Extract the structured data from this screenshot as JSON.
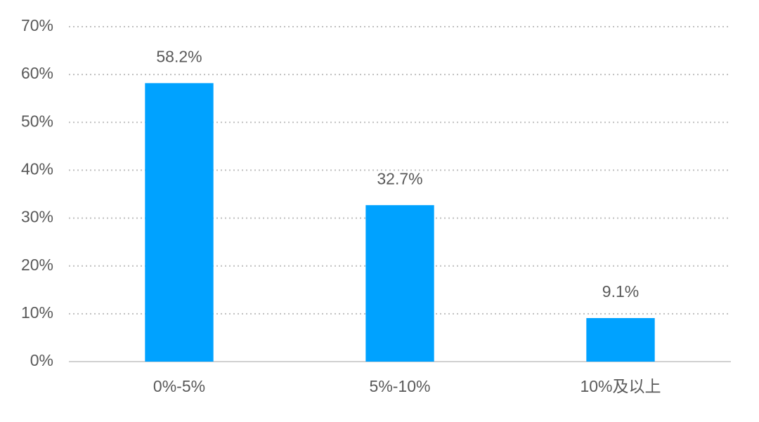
{
  "chart_data": {
    "type": "bar",
    "categories": [
      "0%-5%",
      "5%-10%",
      "10%及以上"
    ],
    "values": [
      58.2,
      32.7,
      9.1
    ],
    "value_labels": [
      "58.2%",
      "32.7%",
      "9.1%"
    ],
    "color": "#00a2ff",
    "ylim": [
      0,
      70
    ],
    "yticks": [
      {
        "value": 0,
        "label": "0%"
      },
      {
        "value": 10,
        "label": "10%"
      },
      {
        "value": 20,
        "label": "20%"
      },
      {
        "value": 30,
        "label": "30%"
      },
      {
        "value": 40,
        "label": "40%"
      },
      {
        "value": 50,
        "label": "50%"
      },
      {
        "value": 60,
        "label": "60%"
      },
      {
        "value": 70,
        "label": "70%"
      }
    ],
    "grid": true
  }
}
